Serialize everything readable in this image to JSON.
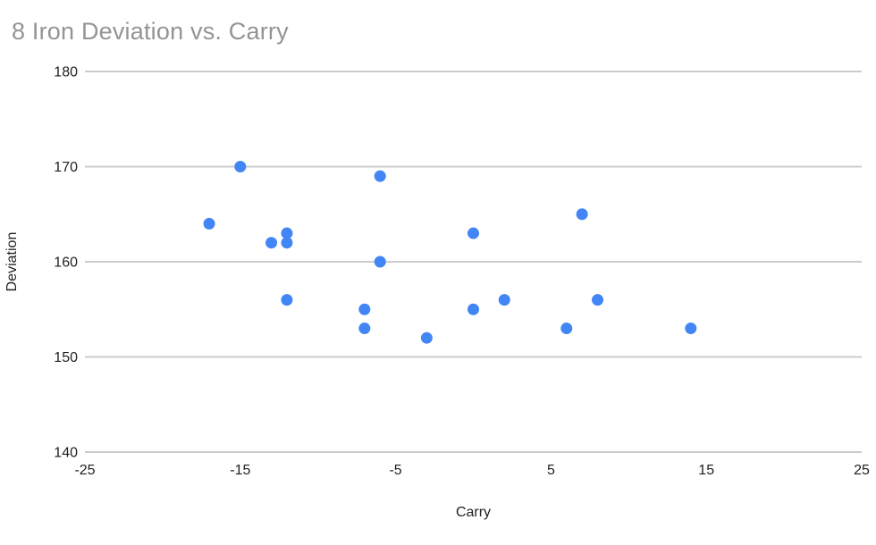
{
  "chart": {
    "title_color": "#949494",
    "point_color": "#4285f4",
    "gridline_color": "#cccccc",
    "axis_text_color": "#1f1f1f"
  },
  "chart_data": {
    "type": "scatter",
    "title": "8 Iron Deviation vs. Carry",
    "xlabel": "Carry",
    "ylabel": "Deviation",
    "xlim": [
      -25,
      25
    ],
    "ylim": [
      140,
      180
    ],
    "x_ticks": [
      -25,
      -15,
      -5,
      5,
      15,
      25
    ],
    "y_ticks": [
      180,
      170,
      160,
      150,
      140
    ],
    "grid": "horizontal-gridlines-only",
    "legend": "none",
    "series": [
      {
        "name": "Deviation",
        "points": [
          {
            "x": -17,
            "y": 164
          },
          {
            "x": -15,
            "y": 170
          },
          {
            "x": -13,
            "y": 162
          },
          {
            "x": -12,
            "y": 163
          },
          {
            "x": -12,
            "y": 162
          },
          {
            "x": -12,
            "y": 156
          },
          {
            "x": -7,
            "y": 155
          },
          {
            "x": -7,
            "y": 153
          },
          {
            "x": -6,
            "y": 169
          },
          {
            "x": -6,
            "y": 160
          },
          {
            "x": -3,
            "y": 152
          },
          {
            "x": 0,
            "y": 163
          },
          {
            "x": 0,
            "y": 155
          },
          {
            "x": 2,
            "y": 156
          },
          {
            "x": 6,
            "y": 153
          },
          {
            "x": 7,
            "y": 165
          },
          {
            "x": 8,
            "y": 156
          },
          {
            "x": 14,
            "y": 153
          }
        ]
      }
    ]
  }
}
